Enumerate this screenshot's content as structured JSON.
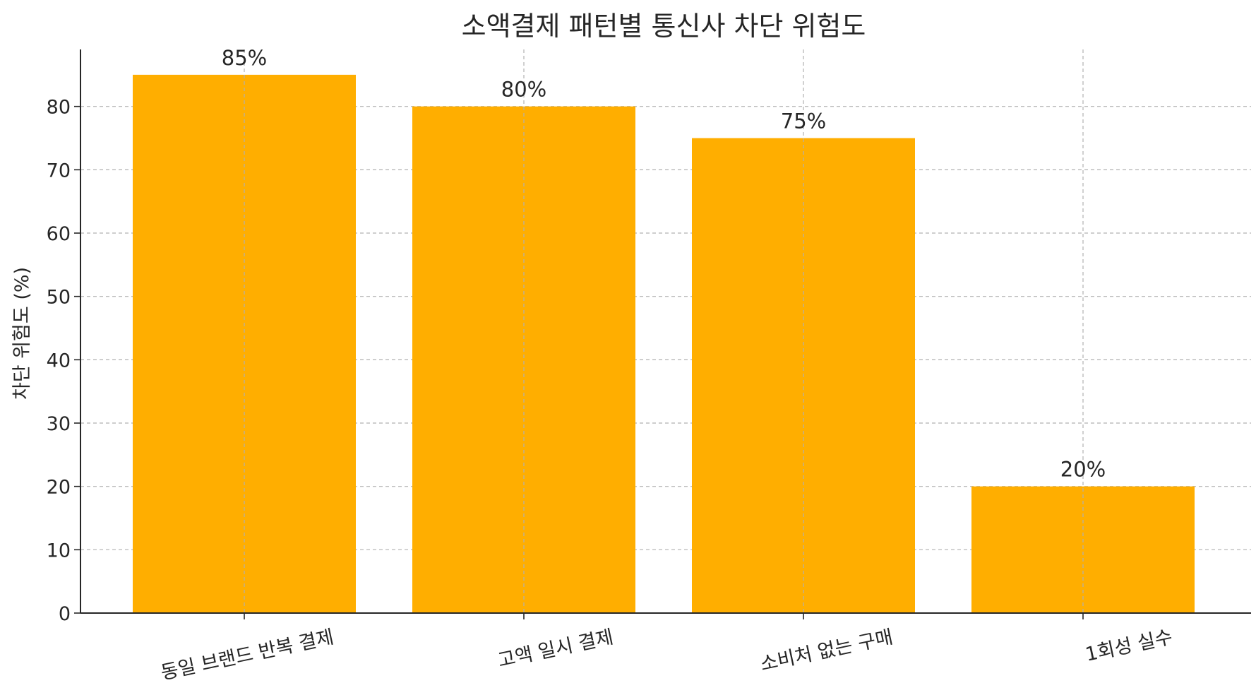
{
  "chart_data": {
    "type": "bar",
    "title": "소액결제 패턴별 통신사 차단 위험도",
    "xlabel": "",
    "ylabel": "차단 위험도 (%)",
    "categories": [
      "동일 브랜드 반복 결제",
      "고액 일시 결제",
      "소비처 없는 구매",
      "1회성 실수"
    ],
    "values": [
      85,
      80,
      75,
      20
    ],
    "data_labels": [
      "85%",
      "80%",
      "75%",
      "20%"
    ],
    "ylim": [
      0,
      89
    ],
    "yticks": [
      0,
      10,
      20,
      30,
      40,
      50,
      60,
      70,
      80
    ],
    "grid": true,
    "bar_color": "#FFAE00"
  }
}
